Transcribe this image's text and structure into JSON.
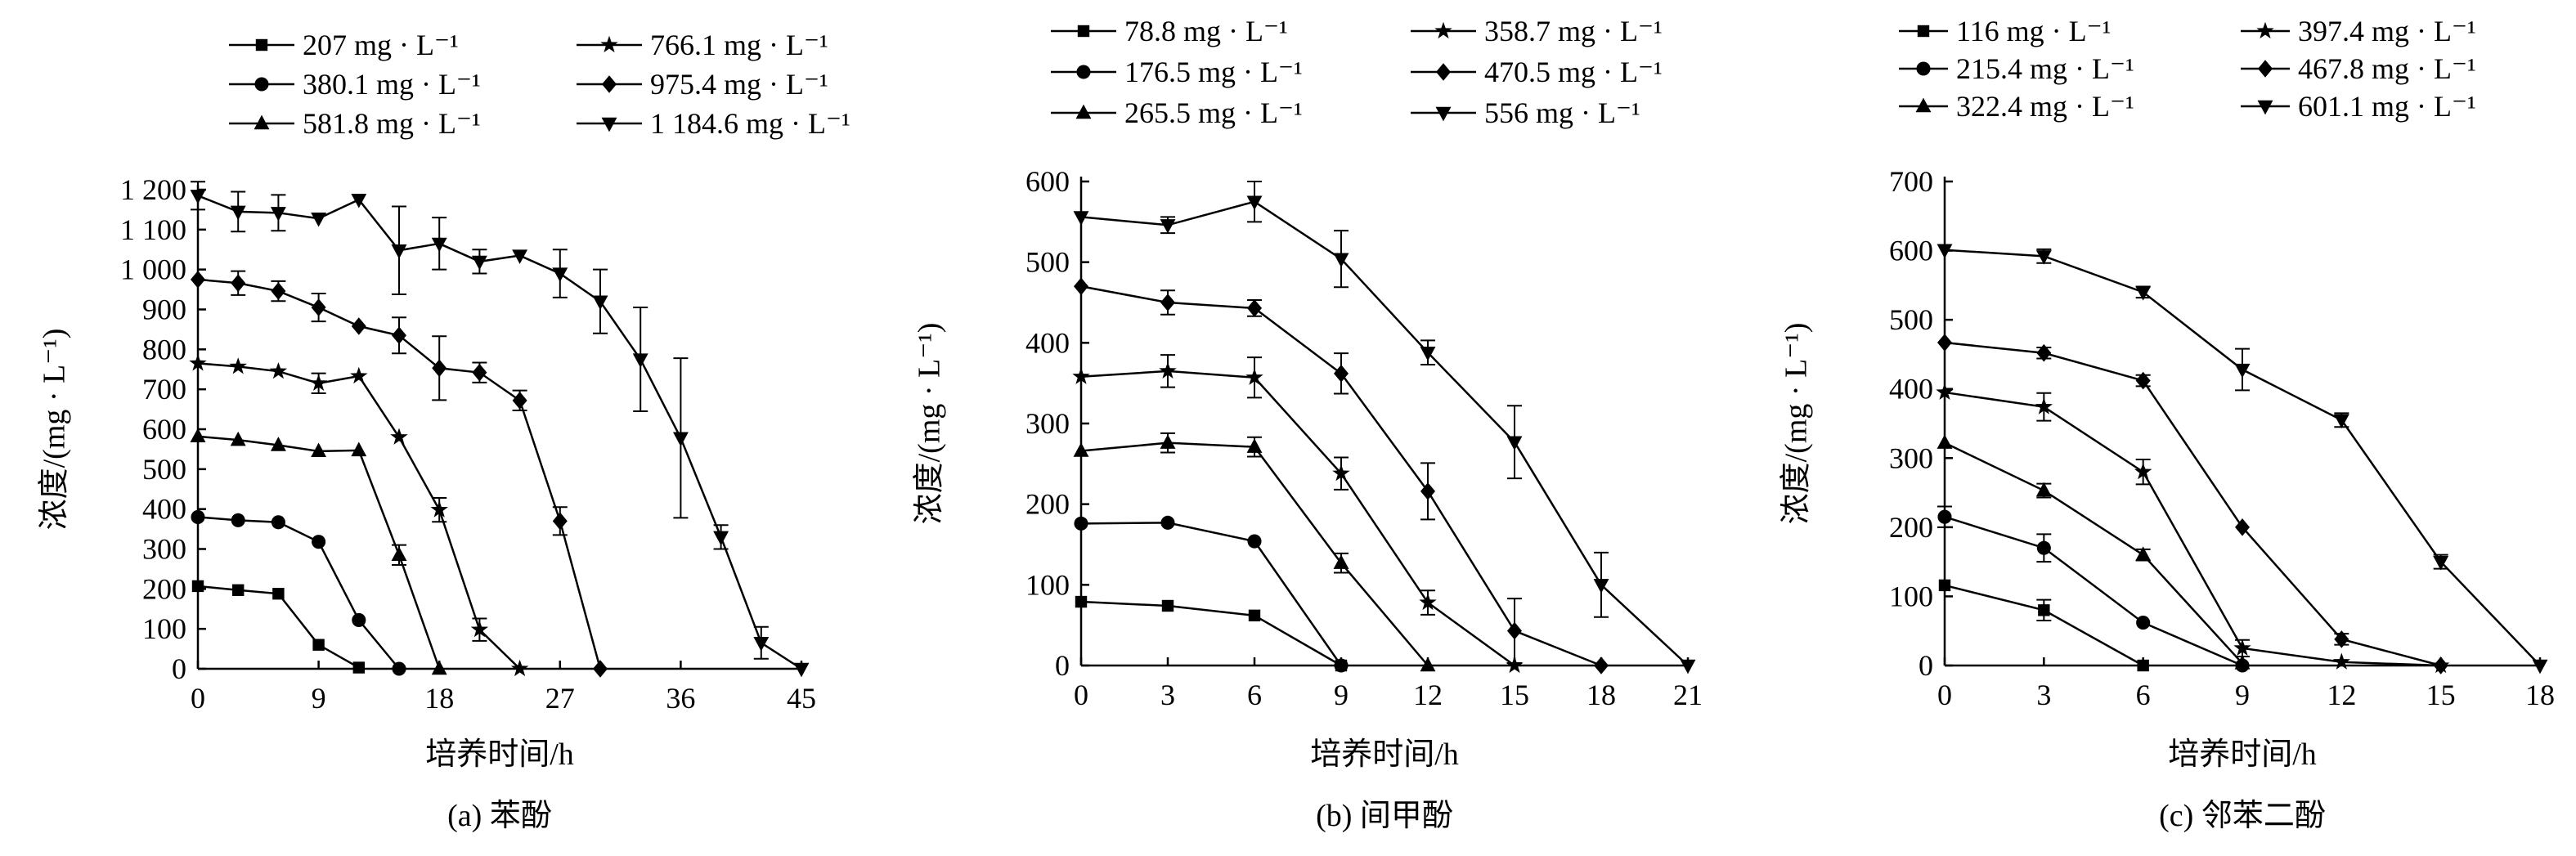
{
  "chart_data": [
    {
      "type": "line",
      "caption": "(a) 苯酚",
      "xlabel": "培养时间/h",
      "ylabel": "浓度/(mg · L⁻¹)",
      "xlim": [
        0,
        45
      ],
      "ylim": [
        0,
        1200
      ],
      "xticks": [
        0,
        9,
        18,
        27,
        36,
        45
      ],
      "xtick_labels": [
        "0",
        "9",
        "18",
        "27",
        "36",
        "45"
      ],
      "yticks": [
        0,
        100,
        200,
        300,
        400,
        500,
        600,
        700,
        800,
        900,
        1000,
        1100,
        1200
      ],
      "ytick_labels": [
        "0",
        "100",
        "200",
        "300",
        "400",
        "500",
        "600",
        "700",
        "800",
        "900",
        "1 000",
        "1 100",
        "1 200"
      ],
      "legend_position": "top",
      "series": [
        {
          "name": "207 mg · L⁻¹",
          "marker": "square",
          "x": [
            0,
            3,
            6,
            9,
            12
          ],
          "y": [
            207,
            197,
            188,
            60,
            3
          ],
          "err": [
            0,
            0,
            0,
            0,
            0
          ]
        },
        {
          "name": "380.1 mg · L⁻¹",
          "marker": "circle",
          "x": [
            0,
            3,
            6,
            9,
            12,
            15
          ],
          "y": [
            380,
            372,
            367,
            318,
            122,
            0
          ],
          "err": [
            0,
            0,
            0,
            0,
            0,
            0
          ]
        },
        {
          "name": "581.8 mg · L⁻¹",
          "marker": "triangle-up",
          "x": [
            0,
            3,
            6,
            9,
            12,
            15,
            18
          ],
          "y": [
            582,
            573,
            560,
            545,
            547,
            285,
            0
          ],
          "err": [
            0,
            0,
            0,
            0,
            0,
            25,
            0
          ]
        },
        {
          "name": "766.1 mg · L⁻¹",
          "marker": "star",
          "x": [
            0,
            3,
            6,
            9,
            12,
            15,
            18,
            21,
            24
          ],
          "y": [
            765,
            757,
            745,
            715,
            733,
            580,
            398,
            98,
            0
          ],
          "err": [
            0,
            0,
            0,
            25,
            0,
            0,
            30,
            28,
            0
          ]
        },
        {
          "name": "975.4 mg · L⁻¹",
          "marker": "diamond",
          "x": [
            0,
            3,
            6,
            9,
            12,
            15,
            18,
            21,
            24,
            27,
            30
          ],
          "y": [
            975,
            966,
            946,
            905,
            858,
            835,
            753,
            742,
            672,
            370,
            0
          ],
          "err": [
            0,
            30,
            25,
            35,
            0,
            45,
            80,
            25,
            25,
            35,
            0
          ]
        },
        {
          "name": "1 184.6 mg · L⁻¹",
          "marker": "triangle-down",
          "x": [
            0,
            3,
            6,
            9,
            12,
            15,
            18,
            21,
            24,
            27,
            30,
            33,
            36,
            39,
            42,
            45
          ],
          "y": [
            1185,
            1145,
            1142,
            1128,
            1175,
            1048,
            1065,
            1020,
            1035,
            990,
            920,
            775,
            578,
            330,
            65,
            0
          ],
          "err": [
            35,
            50,
            45,
            0,
            0,
            110,
            65,
            30,
            0,
            60,
            80,
            130,
            200,
            30,
            40,
            0
          ]
        }
      ]
    },
    {
      "type": "line",
      "caption": "(b) 间甲酚",
      "xlabel": "培养时间/h",
      "ylabel": "浓度/(mg · L⁻¹)",
      "xlim": [
        0,
        21
      ],
      "ylim": [
        0,
        600
      ],
      "xticks": [
        0,
        3,
        6,
        9,
        12,
        15,
        18,
        21
      ],
      "xtick_labels": [
        "0",
        "3",
        "6",
        "9",
        "12",
        "15",
        "18",
        "21"
      ],
      "yticks": [
        0,
        100,
        200,
        300,
        400,
        500,
        600
      ],
      "ytick_labels": [
        "0",
        "100",
        "200",
        "300",
        "400",
        "500",
        "600"
      ],
      "legend_position": "top",
      "series": [
        {
          "name": "78.8 mg · L⁻¹",
          "marker": "square",
          "x": [
            0,
            3,
            6,
            9
          ],
          "y": [
            79,
            74,
            62,
            0
          ],
          "err": [
            0,
            0,
            0,
            0
          ]
        },
        {
          "name": "176.5 mg · L⁻¹",
          "marker": "circle",
          "x": [
            0,
            3,
            6,
            9
          ],
          "y": [
            176,
            177,
            154,
            0
          ],
          "err": [
            0,
            0,
            0,
            0
          ]
        },
        {
          "name": "265.5 mg · L⁻¹",
          "marker": "triangle-up",
          "x": [
            0,
            3,
            6,
            9,
            12
          ],
          "y": [
            266,
            276,
            271,
            127,
            0
          ],
          "err": [
            0,
            12,
            12,
            12,
            0
          ]
        },
        {
          "name": "358.7 mg · L⁻¹",
          "marker": "star",
          "x": [
            0,
            3,
            6,
            9,
            12,
            15
          ],
          "y": [
            358,
            365,
            357,
            238,
            78,
            0
          ],
          "err": [
            0,
            20,
            25,
            20,
            15,
            0
          ]
        },
        {
          "name": "470.5 mg · L⁻¹",
          "marker": "diamond",
          "x": [
            0,
            3,
            6,
            9,
            12,
            15,
            18
          ],
          "y": [
            470,
            450,
            443,
            362,
            216,
            43,
            0
          ],
          "err": [
            0,
            15,
            10,
            25,
            35,
            40,
            0
          ]
        },
        {
          "name": "556 mg · L⁻¹",
          "marker": "triangle-down",
          "x": [
            0,
            3,
            6,
            9,
            12,
            15,
            18,
            21
          ],
          "y": [
            556,
            546,
            575,
            504,
            388,
            277,
            100,
            0
          ],
          "err": [
            0,
            10,
            25,
            35,
            15,
            45,
            40,
            0
          ]
        }
      ]
    },
    {
      "type": "line",
      "caption": "(c) 邻苯二酚",
      "xlabel": "培养时间/h",
      "ylabel": "浓度/(mg · L⁻¹)",
      "xlim": [
        0,
        18
      ],
      "ylim": [
        0,
        700
      ],
      "xticks": [
        0,
        3,
        6,
        9,
        12,
        15,
        18
      ],
      "xtick_labels": [
        "0",
        "3",
        "6",
        "9",
        "12",
        "15",
        "18"
      ],
      "yticks": [
        0,
        100,
        200,
        300,
        400,
        500,
        600,
        700
      ],
      "ytick_labels": [
        "0",
        "100",
        "200",
        "300",
        "400",
        "500",
        "600",
        "700"
      ],
      "legend_position": "top",
      "series": [
        {
          "name": "116 mg · L⁻¹",
          "marker": "square",
          "x": [
            0,
            3,
            6
          ],
          "y": [
            116,
            80,
            0
          ],
          "err": [
            0,
            15,
            0
          ]
        },
        {
          "name": "215.4 mg · L⁻¹",
          "marker": "circle",
          "x": [
            0,
            3,
            6,
            9
          ],
          "y": [
            215,
            170,
            62,
            0
          ],
          "err": [
            15,
            20,
            0,
            0
          ]
        },
        {
          "name": "322.4 mg · L⁻¹",
          "marker": "triangle-up",
          "x": [
            0,
            3,
            6,
            9
          ],
          "y": [
            322,
            253,
            160,
            3
          ],
          "err": [
            0,
            10,
            8,
            0
          ]
        },
        {
          "name": "397.4 mg · L⁻¹",
          "marker": "star",
          "x": [
            0,
            3,
            6,
            9,
            12,
            15
          ],
          "y": [
            395,
            374,
            280,
            25,
            5,
            0
          ],
          "err": [
            0,
            20,
            18,
            12,
            0,
            0
          ]
        },
        {
          "name": "467.8 mg · L⁻¹",
          "marker": "diamond",
          "x": [
            0,
            3,
            6,
            9,
            12,
            15
          ],
          "y": [
            467,
            452,
            412,
            200,
            38,
            0
          ],
          "err": [
            0,
            8,
            8,
            0,
            8,
            0
          ]
        },
        {
          "name": "601.1 mg · L⁻¹",
          "marker": "triangle-down",
          "x": [
            0,
            3,
            6,
            9,
            12,
            15,
            18
          ],
          "y": [
            601,
            592,
            540,
            428,
            355,
            150,
            0
          ],
          "err": [
            0,
            10,
            8,
            30,
            10,
            10,
            0
          ]
        }
      ]
    }
  ]
}
